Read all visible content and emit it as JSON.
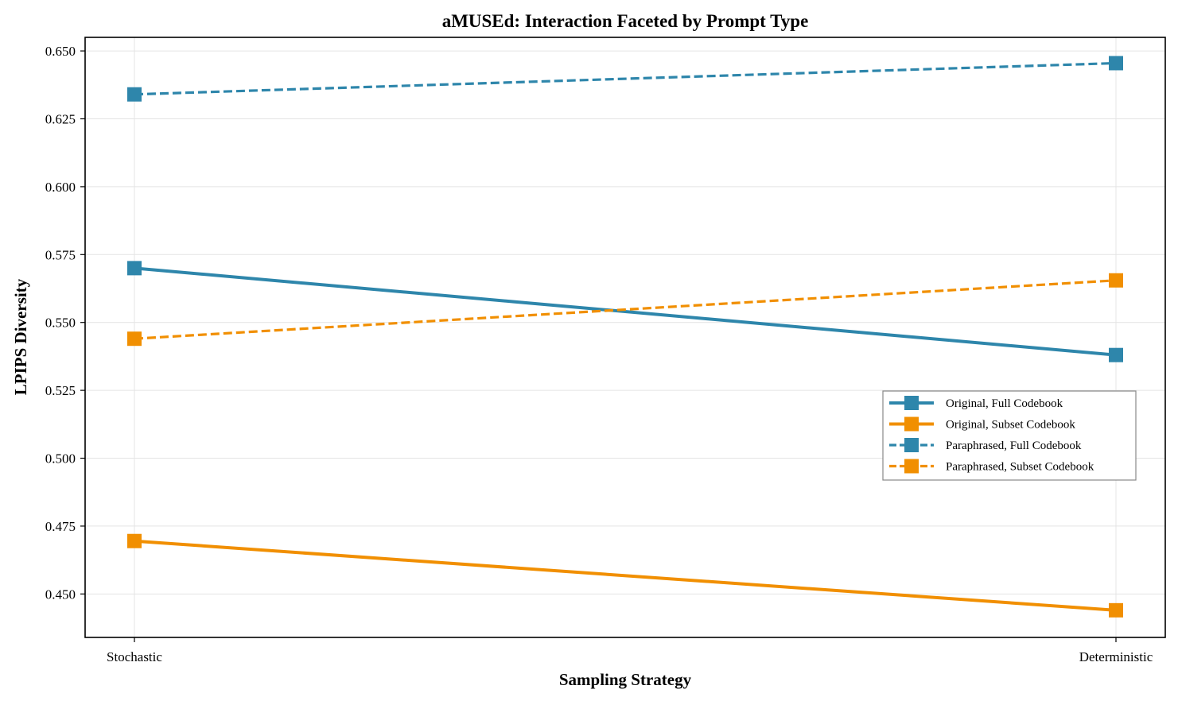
{
  "chart_data": {
    "type": "line",
    "title": "aMUSEd: Interaction Faceted by Prompt Type",
    "xlabel": "Sampling Strategy",
    "ylabel": "LPIPS Diversity",
    "categories": [
      "Stochastic",
      "Deterministic"
    ],
    "ylim": [
      0.434,
      0.655
    ],
    "yticks": [
      0.45,
      0.475,
      0.5,
      0.525,
      0.55,
      0.575,
      0.6,
      0.625,
      0.65
    ],
    "ytick_labels": [
      "0.450",
      "0.475",
      "0.500",
      "0.525",
      "0.550",
      "0.575",
      "0.600",
      "0.625",
      "0.650"
    ],
    "grid": true,
    "legend_position": "center-right",
    "series": [
      {
        "name": "Original, Full Codebook",
        "values": [
          0.57,
          0.538
        ],
        "color": "#2e86ab",
        "style": "solid",
        "marker": "square"
      },
      {
        "name": "Original, Subset Codebook",
        "values": [
          0.4695,
          0.444
        ],
        "color": "#f18f01",
        "style": "solid",
        "marker": "square"
      },
      {
        "name": "Paraphrased, Full Codebook",
        "values": [
          0.634,
          0.6455
        ],
        "color": "#2e86ab",
        "style": "dashed",
        "marker": "square"
      },
      {
        "name": "Paraphrased, Subset Codebook",
        "values": [
          0.544,
          0.5655
        ],
        "color": "#f18f01",
        "style": "dashed",
        "marker": "square"
      }
    ]
  }
}
